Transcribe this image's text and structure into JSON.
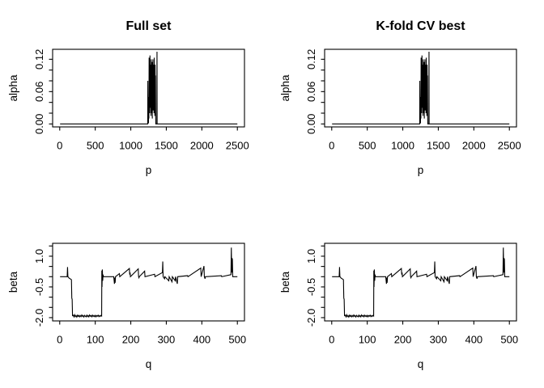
{
  "figure": {
    "background": "#ffffff",
    "foreground": "#000000",
    "description": "2x2 grid of R base plots comparing full-set and K-fold-CV-best coefficient profiles"
  },
  "chart_data": {
    "type": "line",
    "layout": "2x2-grid",
    "grid": "off",
    "legend": "none",
    "series": {
      "alpha": [
        [
          5,
          0
        ],
        [
          1238,
          0
        ],
        [
          1240,
          0.08
        ],
        [
          1243,
          0.005
        ],
        [
          1246,
          0.03
        ],
        [
          1249,
          0.001
        ],
        [
          1252,
          0.05
        ],
        [
          1255,
          0.01
        ],
        [
          1258,
          0.123
        ],
        [
          1261,
          0.03
        ],
        [
          1264,
          0.09
        ],
        [
          1267,
          0.02
        ],
        [
          1270,
          0.127
        ],
        [
          1273,
          0.05
        ],
        [
          1276,
          0.11
        ],
        [
          1279,
          0.03
        ],
        [
          1282,
          0.095
        ],
        [
          1285,
          0.015
        ],
        [
          1288,
          0.12
        ],
        [
          1291,
          0.04
        ],
        [
          1294,
          0.105
        ],
        [
          1297,
          0.02
        ],
        [
          1300,
          0.115
        ],
        [
          1303,
          0.01
        ],
        [
          1306,
          0.1
        ],
        [
          1309,
          0.045
        ],
        [
          1312,
          0.12
        ],
        [
          1315,
          0.025
        ],
        [
          1318,
          0.11
        ],
        [
          1321,
          0.06
        ],
        [
          1324,
          0.095
        ],
        [
          1327,
          0.02
        ],
        [
          1330,
          0.123
        ],
        [
          1333,
          0.04
        ],
        [
          1336,
          0.1
        ],
        [
          1339,
          0.015
        ],
        [
          1342,
          0.11
        ],
        [
          1345,
          0.05
        ],
        [
          1348,
          0.09
        ],
        [
          1350,
          0.02
        ],
        [
          1352,
          0
        ],
        [
          1367,
          0
        ],
        [
          1369,
          0.134
        ],
        [
          1371,
          0
        ],
        [
          2500,
          0
        ]
      ],
      "beta": [
        [
          1,
          0
        ],
        [
          21,
          0
        ],
        [
          22,
          0.47
        ],
        [
          23,
          0
        ],
        [
          27,
          -0.08
        ],
        [
          31,
          -0.12
        ],
        [
          33,
          -0.15
        ],
        [
          34,
          -1.05
        ],
        [
          35,
          -1.1
        ],
        [
          36,
          -1.9
        ],
        [
          38,
          -1.88
        ],
        [
          40,
          -1.96
        ],
        [
          42,
          -1.86
        ],
        [
          44,
          -1.95
        ],
        [
          46,
          -1.9
        ],
        [
          48,
          -1.97
        ],
        [
          50,
          -1.88
        ],
        [
          52,
          -1.94
        ],
        [
          54,
          -1.89
        ],
        [
          56,
          -1.96
        ],
        [
          58,
          -1.9
        ],
        [
          60,
          -1.95
        ],
        [
          62,
          -1.87
        ],
        [
          64,
          -1.94
        ],
        [
          66,
          -1.9
        ],
        [
          68,
          -1.97
        ],
        [
          70,
          -1.89
        ],
        [
          72,
          -1.93
        ],
        [
          74,
          -1.96
        ],
        [
          76,
          -1.88
        ],
        [
          78,
          -1.95
        ],
        [
          80,
          -1.9
        ],
        [
          82,
          -1.96
        ],
        [
          84,
          -1.87
        ],
        [
          86,
          -1.93
        ],
        [
          88,
          -1.9
        ],
        [
          90,
          -1.96
        ],
        [
          92,
          -1.88
        ],
        [
          94,
          -1.94
        ],
        [
          96,
          -1.9
        ],
        [
          98,
          -1.95
        ],
        [
          100,
          -1.89
        ],
        [
          102,
          -1.96
        ],
        [
          104,
          -1.9
        ],
        [
          106,
          -1.93
        ],
        [
          108,
          -1.88
        ],
        [
          110,
          -1.95
        ],
        [
          112,
          -1.9
        ],
        [
          114,
          -1.94
        ],
        [
          116,
          -1.89
        ],
        [
          118,
          -1.92
        ],
        [
          118.5,
          0.3
        ],
        [
          119,
          -0.5
        ],
        [
          120,
          0.35
        ],
        [
          121,
          -0.2
        ],
        [
          122,
          0.1
        ],
        [
          123,
          0
        ],
        [
          152,
          0
        ],
        [
          154,
          -0.35
        ],
        [
          155,
          -0.05
        ],
        [
          156,
          -0.3
        ],
        [
          157,
          0
        ],
        [
          168,
          0.15
        ],
        [
          169,
          0
        ],
        [
          196,
          0.4
        ],
        [
          197,
          0.1
        ],
        [
          198,
          0.2
        ],
        [
          199,
          0
        ],
        [
          221,
          0.38
        ],
        [
          222,
          0
        ],
        [
          223,
          -0.05
        ],
        [
          224,
          0
        ],
        [
          239,
          0.27
        ],
        [
          240,
          0
        ],
        [
          267,
          0.12
        ],
        [
          268,
          0
        ],
        [
          289,
          0.2
        ],
        [
          290,
          0.74
        ],
        [
          291,
          0
        ],
        [
          295,
          -0.1
        ],
        [
          296,
          0
        ],
        [
          307,
          -0.2
        ],
        [
          308,
          0
        ],
        [
          316,
          -0.25
        ],
        [
          317,
          0
        ],
        [
          325,
          -0.2
        ],
        [
          326,
          0
        ],
        [
          331,
          -0.35
        ],
        [
          332,
          0
        ],
        [
          360,
          0.05
        ],
        [
          361,
          0
        ],
        [
          397,
          0.42
        ],
        [
          398,
          0
        ],
        [
          406,
          0.52
        ],
        [
          407,
          0
        ],
        [
          409,
          -0.1
        ],
        [
          410,
          0
        ],
        [
          455,
          0.05
        ],
        [
          456,
          0
        ],
        [
          482,
          0.1
        ],
        [
          483,
          1.42
        ],
        [
          484,
          0.2
        ],
        [
          485,
          0.9
        ],
        [
          486,
          0.85
        ],
        [
          487,
          0
        ],
        [
          500,
          0
        ]
      ]
    },
    "panels": [
      {
        "name": "top-left-alpha-full-set",
        "title": "Full set",
        "xlabel": "p",
        "ylabel": "alpha",
        "series": "alpha",
        "xlim": [
          -100,
          2600
        ],
        "ylim": [
          -0.0055,
          0.1385
        ],
        "xticks": [
          0,
          500,
          1000,
          1500,
          2000,
          2500
        ],
        "xtick_labels": [
          "0",
          "500",
          "1000",
          "1500",
          "2000",
          "2500"
        ],
        "yticks": [
          0,
          0.02,
          0.04,
          0.06,
          0.08,
          0.1,
          0.12
        ],
        "ytick_labels": [
          "0.00",
          "",
          "",
          "0.06",
          "",
          "",
          "0.12"
        ]
      },
      {
        "name": "top-right-alpha-kfold-cv-best",
        "title": "K-fold CV best",
        "xlabel": "p",
        "ylabel": "alpha",
        "series": "alpha",
        "xlim": [
          -100,
          2600
        ],
        "ylim": [
          -0.0055,
          0.1385
        ],
        "xticks": [
          0,
          500,
          1000,
          1500,
          2000,
          2500
        ],
        "xtick_labels": [
          "0",
          "500",
          "1000",
          "1500",
          "2000",
          "2500"
        ],
        "yticks": [
          0,
          0.02,
          0.04,
          0.06,
          0.08,
          0.1,
          0.12
        ],
        "ytick_labels": [
          "0.00",
          "",
          "",
          "0.06",
          "",
          "",
          "0.12"
        ]
      },
      {
        "name": "bottom-left-beta-full-set",
        "title": "",
        "xlabel": "q",
        "ylabel": "beta",
        "series": "beta",
        "xlim": [
          -20,
          520
        ],
        "ylim": [
          -2.16,
          1.63
        ],
        "xticks": [
          0,
          100,
          200,
          300,
          400,
          500
        ],
        "xtick_labels": [
          "0",
          "100",
          "200",
          "300",
          "400",
          "500"
        ],
        "yticks": [
          -2,
          -1.5,
          -1,
          -0.5,
          0,
          0.5,
          1,
          1.5
        ],
        "ytick_labels": [
          "-2.0",
          "",
          "",
          "-0.5",
          "",
          "",
          "1.0",
          ""
        ]
      },
      {
        "name": "bottom-right-beta-kfold-cv-best",
        "title": "",
        "xlabel": "q",
        "ylabel": "beta",
        "series": "beta",
        "xlim": [
          -20,
          520
        ],
        "ylim": [
          -2.16,
          1.63
        ],
        "xticks": [
          0,
          100,
          200,
          300,
          400,
          500
        ],
        "xtick_labels": [
          "0",
          "100",
          "200",
          "300",
          "400",
          "500"
        ],
        "yticks": [
          -2,
          -1.5,
          -1,
          -0.5,
          0,
          0.5,
          1,
          1.5
        ],
        "ytick_labels": [
          "-2.0",
          "",
          "",
          "-0.5",
          "",
          "",
          "1.0",
          ""
        ]
      }
    ]
  }
}
